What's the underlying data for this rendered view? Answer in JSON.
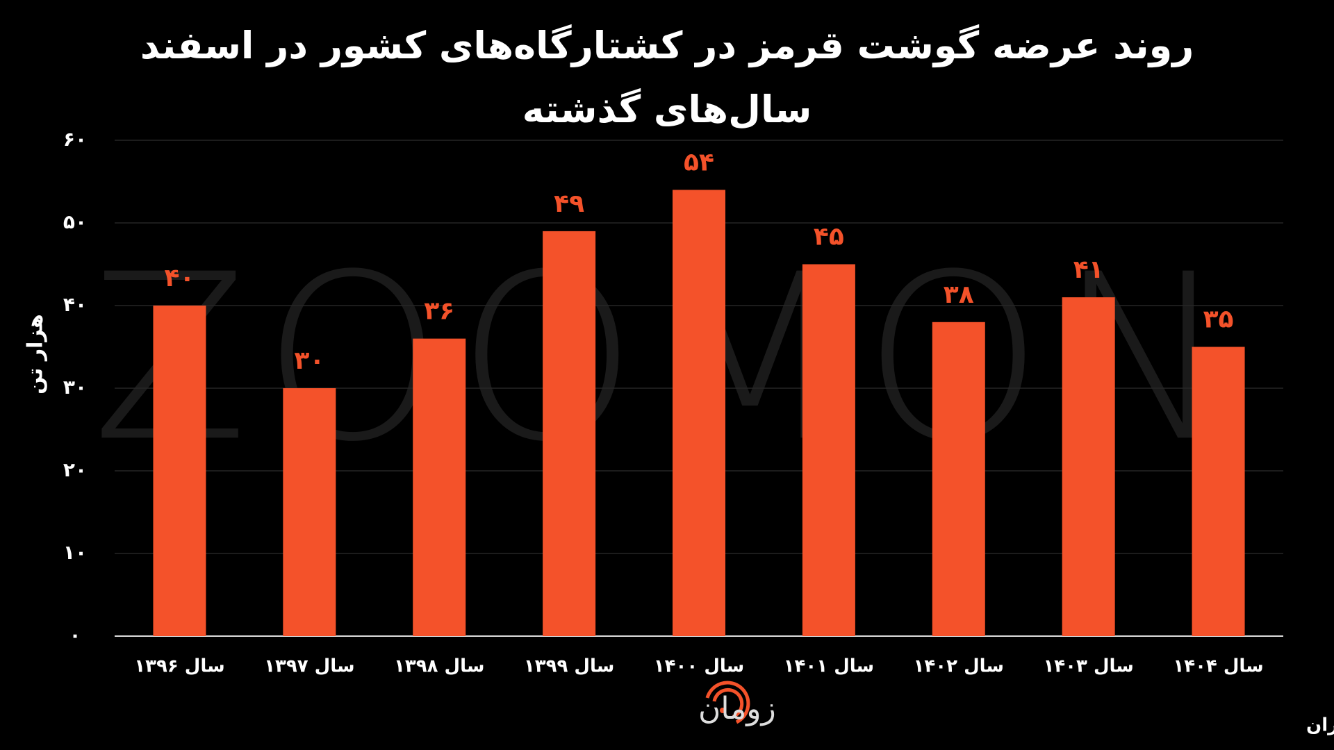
{
  "chart_data": {
    "type": "bar",
    "title": "روند عرضه گوشت قرمز در کشتارگاه‌های کشور در اسفند سال‌های گذشته",
    "ylabel": "هزار تن",
    "categories": [
      "سال ۱۳۹۶",
      "سال ۱۳۹۷",
      "سال ۱۳۹۸",
      "سال ۱۳۹۹",
      "سال ۱۴۰۰",
      "سال ۱۴۰۱",
      "سال ۱۴۰۲",
      "سال ۱۴۰۳",
      "سال ۱۴۰۴"
    ],
    "values": [
      40,
      30,
      36,
      49,
      54,
      45,
      38,
      41,
      35
    ],
    "value_labels": [
      "۴۰",
      "۳۰",
      "۳۶",
      "۴۹",
      "۵۴",
      "۴۵",
      "۳۸",
      "۴۱",
      "۳۵"
    ],
    "color": "#f4522a",
    "ylim": [
      0,
      60
    ],
    "yticks": [
      {
        "value": 0,
        "label": "۰"
      },
      {
        "value": 10,
        "label": "۱۰"
      },
      {
        "value": 20,
        "label": "۲۰"
      },
      {
        "value": 30,
        "label": "۳۰"
      },
      {
        "value": 40,
        "label": "۴۰"
      },
      {
        "value": 50,
        "label": "۵۰"
      },
      {
        "value": 60,
        "label": "۶۰"
      }
    ],
    "grid": true,
    "source": "منبع: مرکز آمار ایران",
    "logo": "زومان",
    "watermark": "ZOOMON"
  }
}
